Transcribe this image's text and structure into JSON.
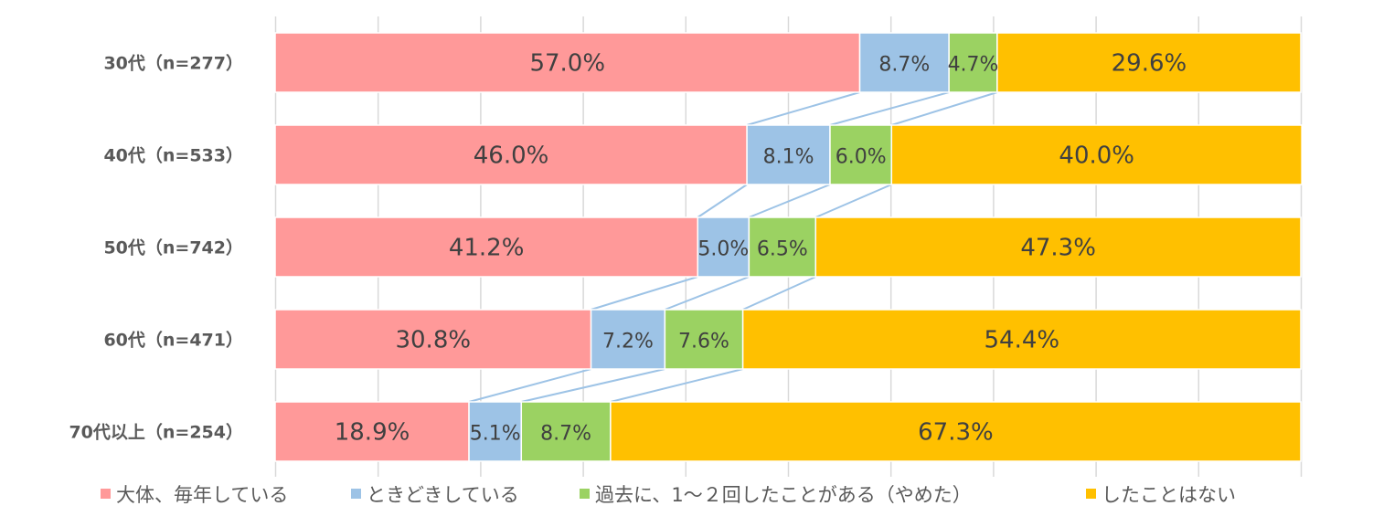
{
  "chart_data": {
    "type": "bar",
    "orientation": "horizontal",
    "stacked": "100%",
    "categories": [
      "30代（n=277）",
      "40代（n=533）",
      "50代（n=742）",
      "60代（n=471）",
      "70代以上（n=254）"
    ],
    "series": [
      {
        "name": "大体、毎年している",
        "values": [
          57.0,
          46.0,
          41.2,
          30.8,
          18.9
        ],
        "color": "#ff9999"
      },
      {
        "name": "ときどきしている",
        "values": [
          8.7,
          8.1,
          5.0,
          7.2,
          5.1
        ],
        "color": "#9dc3e6"
      },
      {
        "name": "過去に、1～２回したことがある（やめた）",
        "values": [
          4.7,
          6.0,
          6.5,
          7.6,
          8.7
        ],
        "color": "#9bd262"
      },
      {
        "name": "したことはない",
        "values": [
          29.6,
          40.0,
          47.3,
          54.4,
          67.3
        ],
        "color": "#ffc000"
      }
    ],
    "data_labels": [
      [
        "57.0%",
        "8.7%",
        "4.7%",
        "29.6%"
      ],
      [
        "46.0%",
        "8.1%",
        "6.0%",
        "40.0%"
      ],
      [
        "41.2%",
        "5.0%",
        "6.5%",
        "47.3%"
      ],
      [
        "30.8%",
        "7.2%",
        "7.6%",
        "54.4%"
      ],
      [
        "18.9%",
        "5.1%",
        "8.7%",
        "67.3%"
      ]
    ],
    "xlim": [
      0,
      100
    ],
    "grid": true,
    "series_lines": true,
    "legend_position": "bottom",
    "title": "",
    "xlabel": "",
    "ylabel": ""
  }
}
